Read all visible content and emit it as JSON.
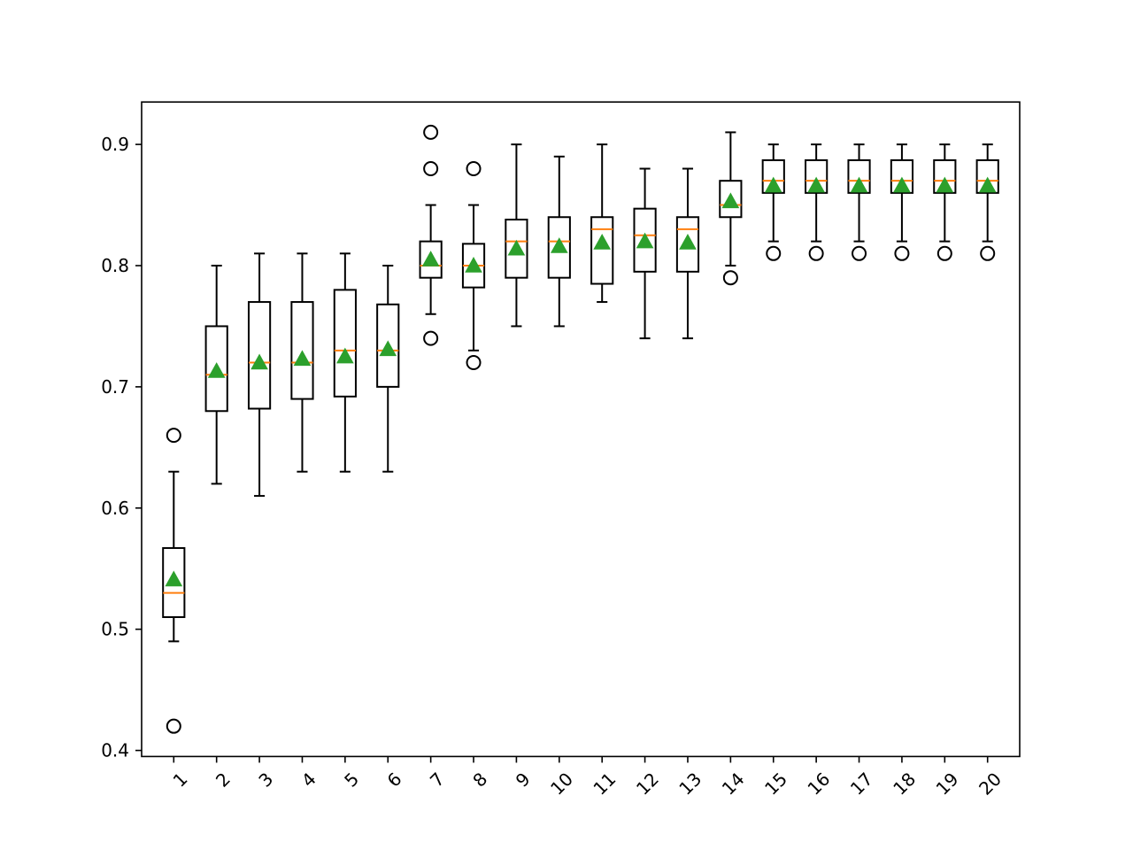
{
  "chart_data": {
    "type": "box",
    "title": "",
    "xlabel": "",
    "ylabel": "",
    "ylim": [
      0.395,
      0.935
    ],
    "yticks": [
      0.4,
      0.5,
      0.6,
      0.7,
      0.8,
      0.9
    ],
    "ytick_labels": [
      "0.4",
      "0.5",
      "0.6",
      "0.7",
      "0.8",
      "0.9"
    ],
    "categories": [
      "1",
      "2",
      "3",
      "4",
      "5",
      "6",
      "7",
      "8",
      "9",
      "10",
      "11",
      "12",
      "13",
      "14",
      "15",
      "16",
      "17",
      "18",
      "19",
      "20"
    ],
    "xtick_rotation_deg": 45,
    "grid": false,
    "colors": {
      "box": "#000000",
      "median": "#ff7f0e",
      "mean": "#2ca02c",
      "outlier": "#000000"
    },
    "boxes": [
      {
        "whislo": 0.49,
        "q1": 0.51,
        "med": 0.53,
        "q3": 0.567,
        "whishi": 0.63,
        "mean": 0.541,
        "fliers": [
          0.66,
          0.42
        ]
      },
      {
        "whislo": 0.62,
        "q1": 0.68,
        "med": 0.71,
        "q3": 0.75,
        "whishi": 0.8,
        "mean": 0.713,
        "fliers": []
      },
      {
        "whislo": 0.61,
        "q1": 0.682,
        "med": 0.72,
        "q3": 0.77,
        "whishi": 0.81,
        "mean": 0.72,
        "fliers": []
      },
      {
        "whislo": 0.63,
        "q1": 0.69,
        "med": 0.72,
        "q3": 0.77,
        "whishi": 0.81,
        "mean": 0.723,
        "fliers": []
      },
      {
        "whislo": 0.63,
        "q1": 0.692,
        "med": 0.73,
        "q3": 0.78,
        "whishi": 0.81,
        "mean": 0.725,
        "fliers": []
      },
      {
        "whislo": 0.63,
        "q1": 0.7,
        "med": 0.73,
        "q3": 0.768,
        "whishi": 0.8,
        "mean": 0.731,
        "fliers": []
      },
      {
        "whislo": 0.76,
        "q1": 0.79,
        "med": 0.8,
        "q3": 0.82,
        "whishi": 0.85,
        "mean": 0.805,
        "fliers": [
          0.91,
          0.88,
          0.74
        ]
      },
      {
        "whislo": 0.73,
        "q1": 0.782,
        "med": 0.8,
        "q3": 0.818,
        "whishi": 0.85,
        "mean": 0.8,
        "fliers": [
          0.88,
          0.72
        ]
      },
      {
        "whislo": 0.75,
        "q1": 0.79,
        "med": 0.82,
        "q3": 0.838,
        "whishi": 0.9,
        "mean": 0.814,
        "fliers": []
      },
      {
        "whislo": 0.75,
        "q1": 0.79,
        "med": 0.82,
        "q3": 0.84,
        "whishi": 0.89,
        "mean": 0.816,
        "fliers": []
      },
      {
        "whislo": 0.77,
        "q1": 0.785,
        "med": 0.83,
        "q3": 0.84,
        "whishi": 0.9,
        "mean": 0.819,
        "fliers": []
      },
      {
        "whislo": 0.74,
        "q1": 0.795,
        "med": 0.825,
        "q3": 0.847,
        "whishi": 0.88,
        "mean": 0.82,
        "fliers": []
      },
      {
        "whislo": 0.74,
        "q1": 0.795,
        "med": 0.83,
        "q3": 0.84,
        "whishi": 0.88,
        "mean": 0.819,
        "fliers": []
      },
      {
        "whislo": 0.8,
        "q1": 0.84,
        "med": 0.85,
        "q3": 0.87,
        "whishi": 0.91,
        "mean": 0.853,
        "fliers": [
          0.79
        ]
      },
      {
        "whislo": 0.82,
        "q1": 0.86,
        "med": 0.87,
        "q3": 0.887,
        "whishi": 0.9,
        "mean": 0.866,
        "fliers": [
          0.81
        ]
      },
      {
        "whislo": 0.82,
        "q1": 0.86,
        "med": 0.87,
        "q3": 0.887,
        "whishi": 0.9,
        "mean": 0.866,
        "fliers": [
          0.81
        ]
      },
      {
        "whislo": 0.82,
        "q1": 0.86,
        "med": 0.87,
        "q3": 0.887,
        "whishi": 0.9,
        "mean": 0.866,
        "fliers": [
          0.81
        ]
      },
      {
        "whislo": 0.82,
        "q1": 0.86,
        "med": 0.87,
        "q3": 0.887,
        "whishi": 0.9,
        "mean": 0.866,
        "fliers": [
          0.81
        ]
      },
      {
        "whislo": 0.82,
        "q1": 0.86,
        "med": 0.87,
        "q3": 0.887,
        "whishi": 0.9,
        "mean": 0.866,
        "fliers": [
          0.81
        ]
      },
      {
        "whislo": 0.82,
        "q1": 0.86,
        "med": 0.87,
        "q3": 0.887,
        "whishi": 0.9,
        "mean": 0.866,
        "fliers": [
          0.81
        ]
      }
    ]
  }
}
